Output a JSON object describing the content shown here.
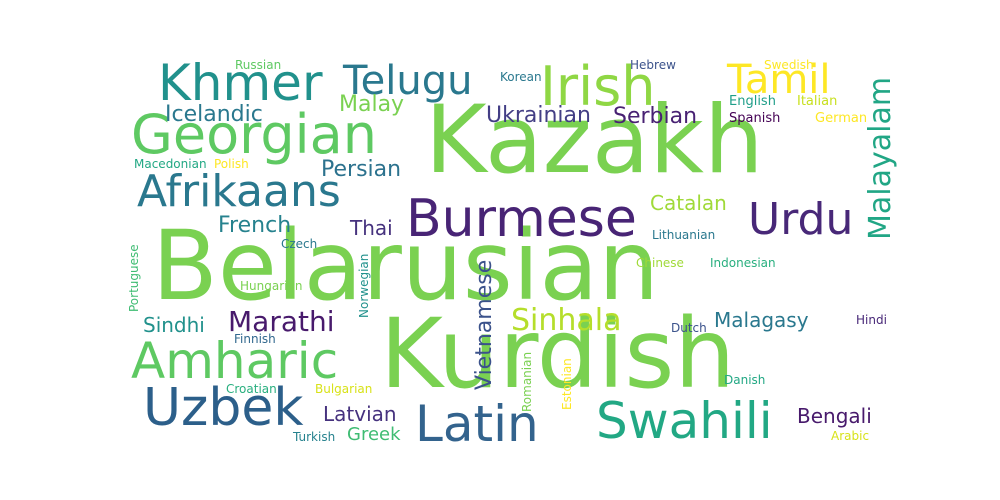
{
  "words": [
    {
      "text": "Belarusian",
      "color": "#7ad151"
    },
    {
      "text": "Kurdish",
      "color": "#7ad151"
    },
    {
      "text": "Kazakh",
      "color": "#7ad151"
    },
    {
      "text": "Burmese",
      "color": "#482475"
    },
    {
      "text": "Swahili",
      "color": "#22a884"
    },
    {
      "text": "Latin",
      "color": "#33638d"
    },
    {
      "text": "Uzbek",
      "color": "#2c5f8a"
    },
    {
      "text": "Amharic",
      "color": "#5ec962"
    },
    {
      "text": "Afrikaans",
      "color": "#2a788e"
    },
    {
      "text": "Georgian",
      "color": "#5ec962"
    },
    {
      "text": "Khmer",
      "color": "#21918c"
    },
    {
      "text": "Telugu",
      "color": "#2a788e"
    },
    {
      "text": "Irish",
      "color": "#8fd744"
    },
    {
      "text": "Tamil",
      "color": "#fde725"
    },
    {
      "text": "Urdu",
      "color": "#482878"
    },
    {
      "text": "Malayalam",
      "color": "#21a685"
    },
    {
      "text": "Marathi",
      "color": "#481a6c"
    },
    {
      "text": "Sinhala",
      "color": "#b5de2b"
    },
    {
      "text": "Vietnamese",
      "color": "#3b528b"
    },
    {
      "text": "Ukrainian",
      "color": "#433e85"
    },
    {
      "text": "Serbian",
      "color": "#482173"
    },
    {
      "text": "Persian",
      "color": "#2c728e"
    },
    {
      "text": "French",
      "color": "#26828e"
    },
    {
      "text": "Malay",
      "color": "#7ad151"
    },
    {
      "text": "Icelandic",
      "color": "#2a788e"
    },
    {
      "text": "Catalan",
      "color": "#a0da39"
    },
    {
      "text": "Thai",
      "color": "#46327e"
    },
    {
      "text": "Sindhi",
      "color": "#21918c"
    },
    {
      "text": "Malagasy",
      "color": "#2a788e"
    },
    {
      "text": "Latvian",
      "color": "#46327e"
    },
    {
      "text": "Bengali",
      "color": "#481a6c"
    },
    {
      "text": "Greek",
      "color": "#3fbc73"
    },
    {
      "text": "Russian",
      "color": "#5ec962"
    },
    {
      "text": "Korean",
      "color": "#2a788e"
    },
    {
      "text": "Hebrew",
      "color": "#3b528b"
    },
    {
      "text": "Swedish",
      "color": "#fde725"
    },
    {
      "text": "English",
      "color": "#1f9e89"
    },
    {
      "text": "Italian",
      "color": "#c8e020"
    },
    {
      "text": "Spanish",
      "color": "#440154"
    },
    {
      "text": "German",
      "color": "#fde725"
    },
    {
      "text": "Macedonian",
      "color": "#22a884"
    },
    {
      "text": "Polish",
      "color": "#fde725"
    },
    {
      "text": "Czech",
      "color": "#2a788e"
    },
    {
      "text": "Lithuanian",
      "color": "#2a788e"
    },
    {
      "text": "Chinese",
      "color": "#a0da39"
    },
    {
      "text": "Indonesian",
      "color": "#29af7f"
    },
    {
      "text": "Portuguese",
      "color": "#3fbc73"
    },
    {
      "text": "Norwegian",
      "color": "#21918c"
    },
    {
      "text": "Hungarian",
      "color": "#7ad151"
    },
    {
      "text": "Dutch",
      "color": "#3b528b"
    },
    {
      "text": "Hindi",
      "color": "#482878"
    },
    {
      "text": "Finnish",
      "color": "#31688e"
    },
    {
      "text": "Romanian",
      "color": "#7ad151"
    },
    {
      "text": "Estonian",
      "color": "#fde725"
    },
    {
      "text": "Danish",
      "color": "#22a884"
    },
    {
      "text": "Croatian",
      "color": "#29af7f"
    },
    {
      "text": "Bulgarian",
      "color": "#d8e219"
    },
    {
      "text": "Turkish",
      "color": "#26828e"
    },
    {
      "text": "Arabic",
      "color": "#d8e219"
    }
  ]
}
